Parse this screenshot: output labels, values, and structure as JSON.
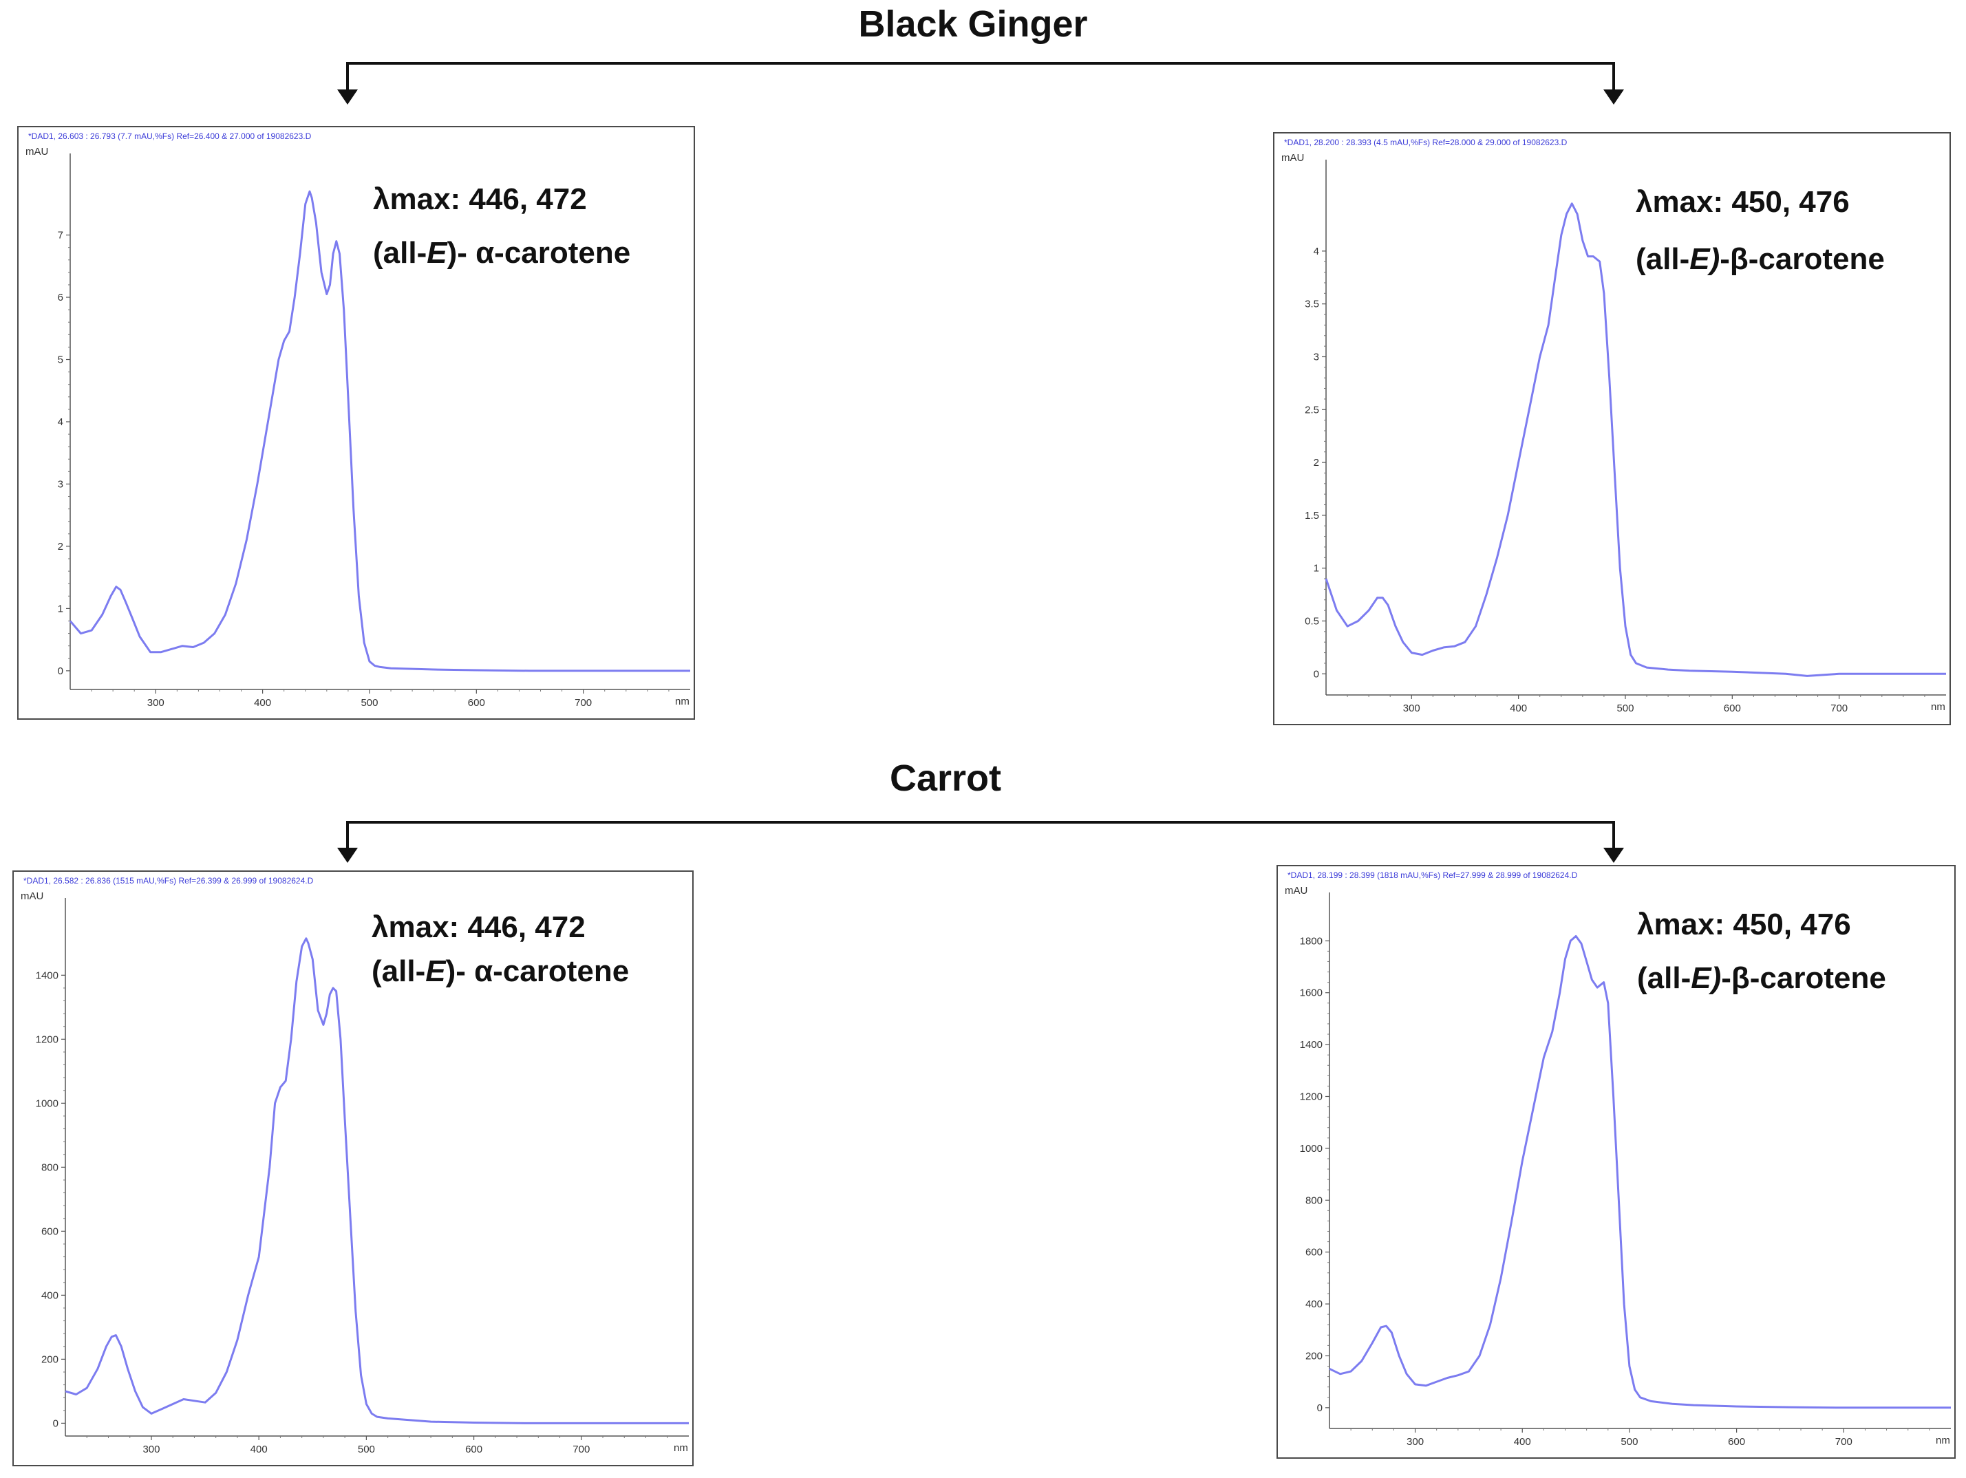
{
  "groups": {
    "top": {
      "title": "Black Ginger"
    },
    "bottom": {
      "title": "Carrot"
    }
  },
  "colors": {
    "trace": "#7c7cf0",
    "header": "#3a3ad8",
    "frame": "#4a4a4a",
    "arrow": "#111111"
  },
  "chart_data": [
    {
      "type": "line",
      "group": "Black Ginger",
      "header": "*DAD1, 26.603 : 26.793 (7.7 mAU,%Fs) Ref=26.400 & 27.000 of 19082623.D",
      "ylabel": "mAU",
      "xlabel": "nm",
      "lambda_label": "λmax: 446, 472",
      "compound": {
        "prefix": "(all-",
        "italic": "E",
        "suffix": ")- α-carotene"
      },
      "xlim": [
        220,
        800
      ],
      "ylim": [
        -0.3,
        8.2
      ],
      "yticks": [
        0,
        1,
        2,
        3,
        4,
        5,
        6,
        7
      ],
      "xticks": [
        300,
        400,
        500,
        600,
        700
      ],
      "series": [
        {
          "x": [
            220,
            230,
            240,
            250,
            258,
            263,
            267,
            272,
            278,
            285,
            295,
            305,
            315,
            325,
            335,
            345,
            355,
            365,
            375,
            385,
            395,
            405,
            415,
            420,
            425,
            430,
            435,
            440,
            444,
            446,
            450,
            455,
            460,
            463,
            466,
            469,
            472,
            476,
            480,
            485,
            490,
            495,
            500,
            505,
            510,
            520,
            540,
            560,
            600,
            650,
            700,
            750,
            800
          ],
          "y": [
            0.8,
            0.6,
            0.65,
            0.9,
            1.2,
            1.35,
            1.3,
            1.1,
            0.85,
            0.55,
            0.3,
            0.3,
            0.35,
            0.4,
            0.38,
            0.45,
            0.6,
            0.9,
            1.4,
            2.1,
            3.0,
            4.0,
            5.0,
            5.3,
            5.45,
            6.0,
            6.7,
            7.5,
            7.7,
            7.6,
            7.2,
            6.4,
            6.05,
            6.2,
            6.7,
            6.9,
            6.7,
            5.8,
            4.4,
            2.6,
            1.2,
            0.45,
            0.15,
            0.08,
            0.06,
            0.04,
            0.03,
            0.02,
            0.01,
            0.0,
            0.0,
            0.0,
            0.0
          ]
        }
      ]
    },
    {
      "type": "line",
      "group": "Black Ginger",
      "header": "*DAD1, 28.200 : 28.393 (4.5 mAU,%Fs) Ref=28.000 & 29.000 of 19082623.D",
      "ylabel": "mAU",
      "xlabel": "nm",
      "lambda_label": "λmax: 450, 476",
      "compound": {
        "prefix": "(all-",
        "italic": "E)",
        "suffix": "-β-carotene"
      },
      "xlim": [
        220,
        800
      ],
      "ylim": [
        -0.2,
        4.8
      ],
      "yticks": [
        0,
        0.5,
        1,
        1.5,
        2,
        2.5,
        3,
        3.5,
        4
      ],
      "xticks": [
        300,
        400,
        500,
        600,
        700
      ],
      "series": [
        {
          "x": [
            220,
            230,
            240,
            250,
            260,
            268,
            273,
            278,
            285,
            292,
            300,
            310,
            320,
            330,
            340,
            350,
            360,
            370,
            380,
            390,
            400,
            410,
            420,
            428,
            435,
            440,
            445,
            450,
            455,
            460,
            465,
            470,
            476,
            480,
            485,
            490,
            495,
            500,
            505,
            510,
            520,
            540,
            560,
            600,
            650,
            670,
            700,
            750,
            800
          ],
          "y": [
            0.9,
            0.6,
            0.45,
            0.5,
            0.6,
            0.72,
            0.72,
            0.65,
            0.45,
            0.3,
            0.2,
            0.18,
            0.22,
            0.25,
            0.26,
            0.3,
            0.45,
            0.75,
            1.1,
            1.5,
            2.0,
            2.5,
            3.0,
            3.3,
            3.8,
            4.15,
            4.35,
            4.45,
            4.35,
            4.1,
            3.95,
            3.95,
            3.9,
            3.6,
            2.8,
            1.9,
            1.0,
            0.45,
            0.18,
            0.1,
            0.06,
            0.04,
            0.03,
            0.02,
            0.0,
            -0.02,
            0.0,
            0.0,
            0.0
          ]
        }
      ]
    },
    {
      "type": "line",
      "group": "Carrot",
      "header": "*DAD1, 26.582 : 26.836 (1515 mAU,%Fs) Ref=26.399 & 26.999 of 19082624.D",
      "ylabel": "mAU",
      "xlabel": "nm",
      "lambda_label": "λmax: 446, 472",
      "compound": {
        "prefix": "(all-",
        "italic": "E",
        "suffix": ")- α-carotene"
      },
      "xlim": [
        220,
        800
      ],
      "ylim": [
        -40,
        1620
      ],
      "yticks": [
        0,
        200,
        400,
        600,
        800,
        1000,
        1200,
        1400
      ],
      "xticks": [
        300,
        400,
        500,
        600,
        700
      ],
      "series": [
        {
          "x": [
            220,
            230,
            240,
            250,
            258,
            263,
            267,
            272,
            278,
            285,
            292,
            300,
            310,
            320,
            330,
            340,
            350,
            360,
            370,
            380,
            390,
            400,
            410,
            415,
            420,
            425,
            430,
            435,
            440,
            444,
            446,
            450,
            455,
            460,
            463,
            466,
            469,
            472,
            476,
            480,
            485,
            490,
            495,
            500,
            505,
            510,
            520,
            540,
            560,
            600,
            650,
            700,
            750,
            800
          ],
          "y": [
            100,
            90,
            110,
            170,
            240,
            270,
            275,
            240,
            170,
            100,
            50,
            30,
            45,
            60,
            75,
            70,
            65,
            95,
            160,
            260,
            400,
            520,
            800,
            1000,
            1050,
            1070,
            1200,
            1380,
            1490,
            1515,
            1500,
            1450,
            1290,
            1245,
            1280,
            1340,
            1360,
            1350,
            1200,
            950,
            650,
            350,
            150,
            60,
            30,
            20,
            15,
            10,
            5,
            2,
            0,
            0,
            0,
            0
          ]
        }
      ]
    },
    {
      "type": "line",
      "group": "Carrot",
      "header": "*DAD1, 28.199 : 28.399 (1818 mAU,%Fs) Ref=27.999 & 28.999 of 19082624.D",
      "ylabel": "mAU",
      "xlabel": "nm",
      "lambda_label": "λmax: 450, 476",
      "compound": {
        "prefix": "(all-",
        "italic": "E)",
        "suffix": "-β-carotene"
      },
      "xlim": [
        220,
        800
      ],
      "ylim": [
        -80,
        1960
      ],
      "yticks": [
        0,
        200,
        400,
        600,
        800,
        1000,
        1200,
        1400,
        1600,
        1800
      ],
      "xticks": [
        300,
        400,
        500,
        600,
        700
      ],
      "series": [
        {
          "x": [
            220,
            230,
            240,
            250,
            260,
            268,
            273,
            278,
            285,
            292,
            300,
            310,
            320,
            330,
            340,
            350,
            360,
            370,
            380,
            390,
            400,
            410,
            420,
            428,
            435,
            440,
            445,
            450,
            455,
            460,
            465,
            470,
            476,
            480,
            485,
            490,
            495,
            500,
            505,
            510,
            520,
            540,
            560,
            600,
            650,
            700,
            750,
            800
          ],
          "y": [
            150,
            130,
            140,
            180,
            250,
            310,
            315,
            290,
            200,
            130,
            90,
            85,
            100,
            115,
            125,
            140,
            200,
            320,
            500,
            720,
            950,
            1150,
            1350,
            1450,
            1600,
            1730,
            1800,
            1818,
            1790,
            1720,
            1650,
            1620,
            1640,
            1560,
            1200,
            800,
            400,
            160,
            70,
            40,
            25,
            15,
            10,
            5,
            2,
            0,
            0,
            0
          ]
        }
      ]
    }
  ]
}
